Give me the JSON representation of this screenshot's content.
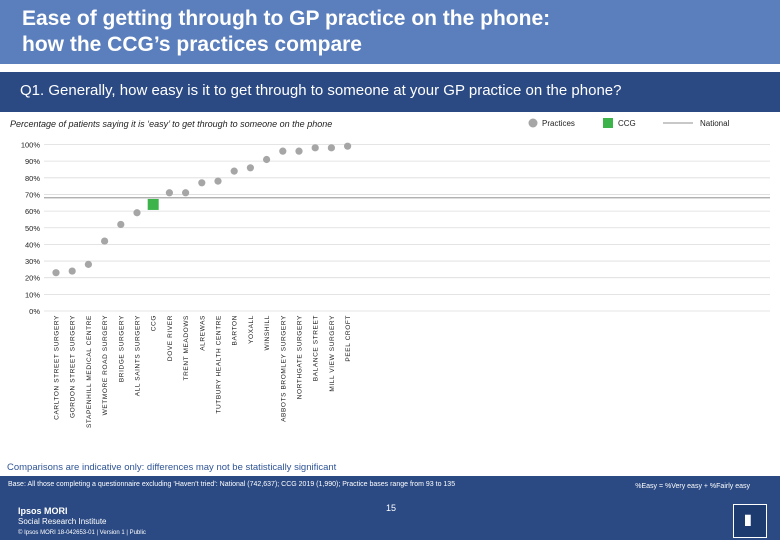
{
  "header": {
    "title_line1": "Ease of getting through to GP practice on the phone:",
    "title_line2": "how the CCG’s practices compare"
  },
  "question": "Q1. Generally, how easy is it to get through to someone at your GP practice on the phone?",
  "subtitle": "Percentage of patients saying it is ‘easy’ to get through to someone on the phone",
  "legend": {
    "practices": "Practices",
    "ccg": "CCG",
    "national": "National"
  },
  "colors": {
    "practice": "#a6a6a6",
    "ccg": "#3cb44b",
    "national": "#a6a6a6"
  },
  "chart_data": {
    "type": "scatter",
    "title": "Percentage of patients saying it is ‘easy’ to get through to someone on the phone",
    "ylim": [
      0,
      100
    ],
    "yticks": [
      0,
      10,
      20,
      30,
      40,
      50,
      60,
      70,
      80,
      90,
      100
    ],
    "ytick_labels": [
      "0%",
      "10%",
      "20%",
      "30%",
      "40%",
      "50%",
      "60%",
      "70%",
      "80%",
      "90%",
      "100%"
    ],
    "national": 68,
    "categories": [
      "CARLTON STREET SURGERY",
      "GORDON STREET SURGERY",
      "STAPENHILL MEDICAL CENTRE",
      "WETMORE ROAD SURGERY",
      "BRIDGE SURGERY",
      "ALL SAINTS SURGERY",
      "CCG",
      "DOVE RIVER",
      "TRENT MEADOWS",
      "ALREWAS",
      "TUTBURY HEALTH CENTRE",
      "BARTON",
      "YOXALL",
      "WINSHILL",
      "ABBOTS BROMLEY SURGERY",
      "NORTHGATE SURGERY",
      "BALANCE STREET",
      "MILL VIEW SURGERY",
      "PEEL CROFT"
    ],
    "values": [
      23,
      24,
      28,
      42,
      52,
      59,
      64,
      71,
      71,
      77,
      78,
      84,
      86,
      91,
      96,
      96,
      98,
      98,
      99
    ],
    "highlight": "CCG"
  },
  "note": "Comparisons are indicative only: differences may not be statistically significant",
  "footer": {
    "base": "Base: All those completing a questionnaire excluding ‘Haven’t tried’: National (742,637); CCG 2019 (1,990); Practice bases range from 93 to 135",
    "definition": "%Easy = %Very easy + %Fairly easy",
    "page_number": "15",
    "brand_line1": "Ipsos MORI",
    "brand_line2": "Social Research Institute",
    "copyright": "© Ipsos MORI      18-042653-01 | Version 1 | Public"
  }
}
